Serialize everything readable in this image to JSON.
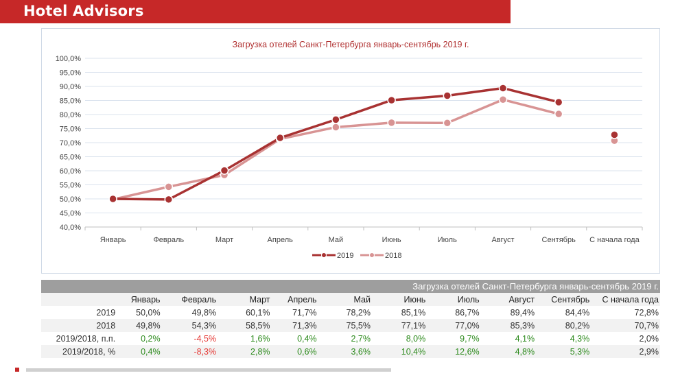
{
  "header": {
    "brand": "Hotel Advisors"
  },
  "colors": {
    "header_bg": "#c62828",
    "series_2019": "#a83232",
    "series_2018": "#d89494",
    "positive": "#2e8b1e",
    "negative": "#e53935"
  },
  "chart_data": {
    "type": "line",
    "title": "Загрузка отелей Санкт-Петербурга январь-сентябрь 2019 г.",
    "categories": [
      "Январь",
      "Февраль",
      "Март",
      "Апрель",
      "Май",
      "Июнь",
      "Июль",
      "Август",
      "Сентябрь",
      "С начала года"
    ],
    "series": [
      {
        "name": "2019",
        "values": [
          50.0,
          49.8,
          60.1,
          71.7,
          78.2,
          85.1,
          86.7,
          89.4,
          84.4,
          72.8
        ]
      },
      {
        "name": "2018",
        "values": [
          49.8,
          54.3,
          58.5,
          71.3,
          75.5,
          77.1,
          77.0,
          85.3,
          80.2,
          70.7
        ]
      }
    ],
    "ylim": [
      40,
      100
    ],
    "yticks": [
      "40,0%",
      "45,0%",
      "50,0%",
      "55,0%",
      "60,0%",
      "65,0%",
      "70,0%",
      "75,0%",
      "80,0%",
      "85,0%",
      "90,0%",
      "95,0%",
      "100,0%"
    ],
    "lines_connect_first_n": 9,
    "grid": true,
    "legend": "bottom"
  },
  "table": {
    "title": "Загрузка отелей Санкт-Петербурга январь-сентябрь 2019 г.",
    "headers": [
      "Январь",
      "Февраль",
      "Март",
      "Апрель",
      "Май",
      "Июнь",
      "Июль",
      "Август",
      "Сентябрь",
      "С начала года"
    ],
    "rows": [
      {
        "label": "2019",
        "cells": [
          {
            "v": "50,0%",
            "s": "neu"
          },
          {
            "v": "49,8%",
            "s": "neu"
          },
          {
            "v": "60,1%",
            "s": "neu"
          },
          {
            "v": "71,7%",
            "s": "neu"
          },
          {
            "v": "78,2%",
            "s": "neu"
          },
          {
            "v": "85,1%",
            "s": "neu"
          },
          {
            "v": "86,7%",
            "s": "neu"
          },
          {
            "v": "89,4%",
            "s": "neu"
          },
          {
            "v": "84,4%",
            "s": "neu"
          },
          {
            "v": "72,8%",
            "s": "neu"
          }
        ]
      },
      {
        "label": "2018",
        "cells": [
          {
            "v": "49,8%",
            "s": "neu"
          },
          {
            "v": "54,3%",
            "s": "neu"
          },
          {
            "v": "58,5%",
            "s": "neu"
          },
          {
            "v": "71,3%",
            "s": "neu"
          },
          {
            "v": "75,5%",
            "s": "neu"
          },
          {
            "v": "77,1%",
            "s": "neu"
          },
          {
            "v": "77,0%",
            "s": "neu"
          },
          {
            "v": "85,3%",
            "s": "neu"
          },
          {
            "v": "80,2%",
            "s": "neu"
          },
          {
            "v": "70,7%",
            "s": "neu"
          }
        ]
      },
      {
        "label": "2019/2018, п.п.",
        "cells": [
          {
            "v": "0,2%",
            "s": "pos"
          },
          {
            "v": "-4,5%",
            "s": "neg"
          },
          {
            "v": "1,6%",
            "s": "pos"
          },
          {
            "v": "0,4%",
            "s": "pos"
          },
          {
            "v": "2,7%",
            "s": "pos"
          },
          {
            "v": "8,0%",
            "s": "pos"
          },
          {
            "v": "9,7%",
            "s": "pos"
          },
          {
            "v": "4,1%",
            "s": "pos"
          },
          {
            "v": "4,3%",
            "s": "pos"
          },
          {
            "v": "2,0%",
            "s": "neu"
          }
        ]
      },
      {
        "label": "2019/2018, %",
        "cells": [
          {
            "v": "0,4%",
            "s": "pos"
          },
          {
            "v": "-8,3%",
            "s": "neg"
          },
          {
            "v": "2,8%",
            "s": "pos"
          },
          {
            "v": "0,6%",
            "s": "pos"
          },
          {
            "v": "3,6%",
            "s": "pos"
          },
          {
            "v": "10,4%",
            "s": "pos"
          },
          {
            "v": "12,6%",
            "s": "pos"
          },
          {
            "v": "4,8%",
            "s": "pos"
          },
          {
            "v": "5,3%",
            "s": "pos"
          },
          {
            "v": "2,9%",
            "s": "neu"
          }
        ]
      }
    ]
  }
}
